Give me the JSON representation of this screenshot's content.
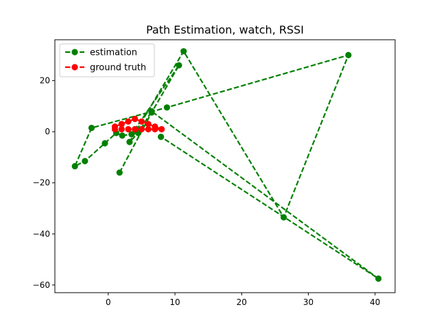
{
  "chart_data": {
    "type": "line",
    "title": "Path Estimation, watch, RSSI",
    "xlabel": "",
    "ylabel": "",
    "xlim": [
      -8,
      43
    ],
    "ylim": [
      -63,
      36
    ],
    "xticks": [
      0,
      10,
      20,
      30,
      40
    ],
    "yticks": [
      -60,
      -40,
      -20,
      0,
      20
    ],
    "grid": false,
    "legend_position": "top-left",
    "series": [
      {
        "name": "estimation",
        "color": "#008000",
        "linestyle": "dashed",
        "marker": "circle",
        "x": [
          1.7,
          6.5,
          10.6,
          3.5,
          2.1,
          1.2,
          -0.5,
          -3.5,
          -5,
          -2.5,
          8.8,
          36,
          26.3,
          11.3,
          3.2,
          4.5,
          6.5,
          40.5,
          7.9
        ],
        "y": [
          -16,
          7.5,
          26,
          -1,
          -1.5,
          -0.5,
          -4.5,
          -11.5,
          -13.5,
          1.5,
          9.5,
          30,
          -33.5,
          31.5,
          -4,
          -0.5,
          8,
          -57.5,
          -2
        ]
      },
      {
        "name": "ground truth",
        "color": "#ff0000",
        "linestyle": "dashed",
        "marker": "circle",
        "x": [
          1,
          2,
          3,
          4,
          5,
          6,
          7,
          8,
          7,
          6,
          5,
          4,
          3,
          2,
          1
        ],
        "y": [
          2,
          3,
          4,
          5,
          4,
          3,
          2,
          1,
          1,
          1,
          1,
          1,
          1,
          1,
          1
        ]
      }
    ]
  }
}
